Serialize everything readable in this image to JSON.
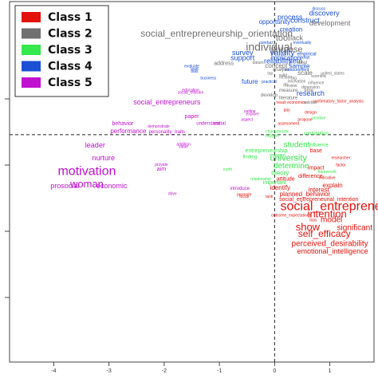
{
  "chart_data": {
    "type": "scatter",
    "xlim": [
      -4.8,
      1.8
    ],
    "ylim": [
      -4.1,
      2.4
    ],
    "x_ticks": [
      "-4",
      "-3",
      "-2",
      "-1",
      "0",
      "1"
    ],
    "x_tick_values": [
      -4,
      -3,
      -2,
      -1,
      0,
      1
    ],
    "reference_lines": {
      "x": 0,
      "y": 0
    },
    "legend_position": "top-left",
    "classes": [
      {
        "name": "Class 1",
        "color": "#e3120b"
      },
      {
        "name": "Class 2",
        "color": "#707070"
      },
      {
        "name": "Class 3",
        "color": "#35e84b"
      },
      {
        "name": "Class 4",
        "color": "#1a4fd6"
      },
      {
        "name": "Class 5",
        "color": "#c010d0"
      }
    ],
    "points": [
      {
        "label": "discuss",
        "x": 0.8,
        "y": 2.27,
        "cls": 4,
        "size": 5
      },
      {
        "label": "discovery",
        "x": 0.9,
        "y": 2.18,
        "cls": 4,
        "size": 9
      },
      {
        "label": "process",
        "x": 0.28,
        "y": 2.11,
        "cls": 4,
        "size": 9
      },
      {
        "label": "construct",
        "x": 0.55,
        "y": 2.05,
        "cls": 4,
        "size": 9
      },
      {
        "label": "opportunity",
        "x": 0.0,
        "y": 2.03,
        "cls": 4,
        "size": 8
      },
      {
        "label": "development",
        "x": 1.0,
        "y": 2.0,
        "cls": 2,
        "size": 9
      },
      {
        "label": "creation",
        "x": 0.3,
        "y": 1.89,
        "cls": 4,
        "size": 8
      },
      {
        "label": "social_entrepreneurship_orientation",
        "x": -1.05,
        "y": 1.81,
        "cls": 2,
        "size": 12
      },
      {
        "label": "tool",
        "x": 0.15,
        "y": 1.74,
        "cls": 2,
        "size": 11
      },
      {
        "label": "lack",
        "x": 0.4,
        "y": 1.74,
        "cls": 2,
        "size": 9
      },
      {
        "label": "conduct",
        "x": -0.15,
        "y": 1.66,
        "cls": 4,
        "size": 5
      },
      {
        "label": "eventually",
        "x": 0.5,
        "y": 1.66,
        "cls": 4,
        "size": 5
      },
      {
        "label": "individual",
        "x": -0.1,
        "y": 1.57,
        "cls": 2,
        "size": 14
      },
      {
        "label": "purpose",
        "x": 0.22,
        "y": 1.53,
        "cls": 2,
        "size": 11
      },
      {
        "label": "survey",
        "x": -0.58,
        "y": 1.47,
        "cls": 4,
        "size": 9
      },
      {
        "label": "validity",
        "x": 0.14,
        "y": 1.47,
        "cls": 4,
        "size": 10
      },
      {
        "label": "empirical",
        "x": 0.58,
        "y": 1.45,
        "cls": 4,
        "size": 6
      },
      {
        "label": "support",
        "x": -0.58,
        "y": 1.38,
        "cls": 4,
        "size": 9
      },
      {
        "label": "implication",
        "x": 0.2,
        "y": 1.38,
        "cls": 4,
        "size": 8
      },
      {
        "label": "adopt",
        "x": 0.55,
        "y": 1.39,
        "cls": 4,
        "size": 5
      },
      {
        "label": "reliability",
        "x": 0.06,
        "y": 1.32,
        "cls": 4,
        "size": 9
      },
      {
        "label": "item",
        "x": 0.38,
        "y": 1.32,
        "cls": 4,
        "size": 9
      },
      {
        "label": "datum",
        "x": -0.3,
        "y": 1.3,
        "cls": 2,
        "size": 5
      },
      {
        "label": "address",
        "x": -0.92,
        "y": 1.28,
        "cls": 2,
        "size": 7
      },
      {
        "label": "adopt",
        "x": 0.5,
        "y": 1.3,
        "cls": 2,
        "size": 5
      },
      {
        "label": "concept",
        "x": 0.03,
        "y": 1.24,
        "cls": 2,
        "size": 8
      },
      {
        "label": "sample",
        "x": 0.45,
        "y": 1.23,
        "cls": 4,
        "size": 8
      },
      {
        "label": "evaluate",
        "x": -1.5,
        "y": 1.23,
        "cls": 4,
        "size": 5
      },
      {
        "label": "lead",
        "x": -1.45,
        "y": 1.18,
        "cls": 4,
        "size": 5
      },
      {
        "label": "bias",
        "x": -1.45,
        "y": 1.14,
        "cls": 4,
        "size": 5
      },
      {
        "label": "analysis",
        "x": 0.12,
        "y": 1.17,
        "cls": 2,
        "size": 6
      },
      {
        "label": "measurement",
        "x": 0.4,
        "y": 1.17,
        "cls": 4,
        "size": 5
      },
      {
        "label": "scale",
        "x": 0.55,
        "y": 1.11,
        "cls": 2,
        "size": 8
      },
      {
        "label": "tap",
        "x": -0.08,
        "y": 1.1,
        "cls": 2,
        "size": 5
      },
      {
        "label": "united_states",
        "x": 1.05,
        "y": 1.1,
        "cls": 2,
        "size": 5
      },
      {
        "label": "valid",
        "x": 0.15,
        "y": 1.07,
        "cls": 2,
        "size": 5
      },
      {
        "label": "scientific",
        "x": 0.8,
        "y": 1.05,
        "cls": 2,
        "size": 5
      },
      {
        "label": "include",
        "x": 0.2,
        "y": 1.03,
        "cls": 2,
        "size": 5
      },
      {
        "label": "big",
        "x": 0.35,
        "y": 1.02,
        "cls": 2,
        "size": 5
      },
      {
        "label": "business",
        "x": -1.2,
        "y": 1.02,
        "cls": 4,
        "size": 5
      },
      {
        "label": "future",
        "x": -0.45,
        "y": 0.95,
        "cls": 4,
        "size": 8
      },
      {
        "label": "practical",
        "x": -0.1,
        "y": 0.95,
        "cls": 4,
        "size": 5
      },
      {
        "label": "innovation",
        "x": 0.4,
        "y": 0.96,
        "cls": 2,
        "size": 5
      },
      {
        "label": "influence",
        "x": 0.75,
        "y": 0.93,
        "cls": 2,
        "size": 5
      },
      {
        "label": "ph",
        "x": 0.2,
        "y": 0.9,
        "cls": 2,
        "size": 5
      },
      {
        "label": "review",
        "x": 0.3,
        "y": 0.88,
        "cls": 2,
        "size": 5
      },
      {
        "label": "dimension",
        "x": 0.65,
        "y": 0.85,
        "cls": 2,
        "size": 5
      },
      {
        "label": "measure",
        "x": 0.25,
        "y": 0.8,
        "cls": 2,
        "size": 6
      },
      {
        "label": "time",
        "x": 0.62,
        "y": 0.8,
        "cls": 2,
        "size": 6
      },
      {
        "label": "research",
        "x": 0.65,
        "y": 0.74,
        "cls": 4,
        "size": 9
      },
      {
        "label": "education",
        "x": -1.52,
        "y": 0.8,
        "cls": 5,
        "size": 5
      },
      {
        "label": "social_mission",
        "x": -1.52,
        "y": 0.76,
        "cls": 5,
        "size": 5
      },
      {
        "label": "develop",
        "x": -0.1,
        "y": 0.71,
        "cls": 2,
        "size": 6
      },
      {
        "label": "literature",
        "x": 0.25,
        "y": 0.66,
        "cls": 2,
        "size": 6
      },
      {
        "label": "result",
        "x": 0.12,
        "y": 0.58,
        "cls": 1,
        "size": 5
      },
      {
        "label": "economics",
        "x": 0.4,
        "y": 0.58,
        "cls": 1,
        "size": 5
      },
      {
        "label": "validate",
        "x": 0.65,
        "y": 0.58,
        "cls": 2,
        "size": 5
      },
      {
        "label": "social_entrepreneurs",
        "x": -1.95,
        "y": 0.58,
        "cls": 5,
        "size": 9
      },
      {
        "label": "confirmatory_factor_analysis",
        "x": 1.15,
        "y": 0.6,
        "cls": 1,
        "size": 5
      },
      {
        "label": "demonstrate",
        "x": -2.1,
        "y": 0.15,
        "cls": 5,
        "size": 5
      },
      {
        "label": "pay",
        "x": 0.22,
        "y": 0.44,
        "cls": 1,
        "size": 5
      },
      {
        "label": "design",
        "x": 0.65,
        "y": 0.4,
        "cls": 1,
        "size": 5
      },
      {
        "label": "outline",
        "x": -0.45,
        "y": 0.42,
        "cls": 5,
        "size": 5
      },
      {
        "label": "explore",
        "x": -0.4,
        "y": 0.37,
        "cls": 5,
        "size": 5
      },
      {
        "label": "paper",
        "x": -1.5,
        "y": 0.33,
        "cls": 5,
        "size": 7
      },
      {
        "label": "positive",
        "x": 0.8,
        "y": 0.3,
        "cls": 3,
        "size": 5
      },
      {
        "label": "propose",
        "x": 0.55,
        "y": 0.27,
        "cls": 1,
        "size": 5
      },
      {
        "label": "aspect",
        "x": -0.5,
        "y": 0.27,
        "cls": 5,
        "size": 5
      },
      {
        "label": "behavior",
        "x": -2.75,
        "y": 0.2,
        "cls": 5,
        "size": 7
      },
      {
        "label": "understand",
        "x": -1.2,
        "y": 0.2,
        "cls": 5,
        "size": 6
      },
      {
        "label": "social",
        "x": -1.0,
        "y": 0.2,
        "cls": 5,
        "size": 6
      },
      {
        "label": "assessment",
        "x": 0.25,
        "y": 0.2,
        "cls": 1,
        "size": 5
      },
      {
        "label": "characteristic",
        "x": 0.05,
        "y": 0.05,
        "cls": 3,
        "size": 5
      },
      {
        "label": "performance",
        "x": -2.65,
        "y": 0.06,
        "cls": 5,
        "size": 8
      },
      {
        "label": "personality_traits",
        "x": -1.95,
        "y": 0.05,
        "cls": 5,
        "size": 6
      },
      {
        "label": "contribution",
        "x": 0.75,
        "y": 0.02,
        "cls": 3,
        "size": 6
      },
      {
        "label": "suggest",
        "x": -0.05,
        "y": -0.02,
        "cls": 3,
        "size": 5
      },
      {
        "label": "addition",
        "x": -1.65,
        "y": -0.18,
        "cls": 5,
        "size": 5
      },
      {
        "label": "value",
        "x": -1.65,
        "y": -0.22,
        "cls": 5,
        "size": 5
      },
      {
        "label": "leader",
        "x": -3.25,
        "y": -0.2,
        "cls": 5,
        "size": 9
      },
      {
        "label": "student",
        "x": 0.4,
        "y": -0.19,
        "cls": 3,
        "size": 10
      },
      {
        "label": "influence",
        "x": 0.8,
        "y": -0.19,
        "cls": 3,
        "size": 6
      },
      {
        "label": "entrepreneurship",
        "x": -0.15,
        "y": -0.29,
        "cls": 3,
        "size": 7
      },
      {
        "label": "base",
        "x": 0.75,
        "y": -0.29,
        "cls": 1,
        "size": 7
      },
      {
        "label": "finding",
        "x": -0.45,
        "y": -0.4,
        "cls": 3,
        "size": 6
      },
      {
        "label": "university",
        "x": 0.25,
        "y": -0.43,
        "cls": 3,
        "size": 11
      },
      {
        "label": "researcher",
        "x": 1.2,
        "y": -0.42,
        "cls": 1,
        "size": 5
      },
      {
        "label": "nurture",
        "x": -3.1,
        "y": -0.43,
        "cls": 5,
        "size": 9
      },
      {
        "label": "measure",
        "x": 0.05,
        "y": -0.37,
        "cls": 3,
        "size": 5
      },
      {
        "label": "determine",
        "x": 0.3,
        "y": -0.57,
        "cls": 3,
        "size": 10
      },
      {
        "label": "impact",
        "x": 0.75,
        "y": -0.6,
        "cls": 1,
        "size": 7
      },
      {
        "label": "provide",
        "x": -2.05,
        "y": -0.54,
        "cls": 5,
        "size": 5
      },
      {
        "label": "aim",
        "x": -2.05,
        "y": -0.62,
        "cls": 5,
        "size": 7
      },
      {
        "label": "factor",
        "x": 1.2,
        "y": -0.55,
        "cls": 1,
        "size": 5
      },
      {
        "label": "motivation",
        "x": -3.4,
        "y": -0.67,
        "cls": 5,
        "size": 16
      },
      {
        "label": "north",
        "x": -0.85,
        "y": -0.63,
        "cls": 3,
        "size": 5
      },
      {
        "label": "theory",
        "x": 0.1,
        "y": -0.7,
        "cls": 3,
        "size": 8
      },
      {
        "label": "framework",
        "x": 0.95,
        "y": -0.67,
        "cls": 3,
        "size": 5
      },
      {
        "label": "difference",
        "x": 0.65,
        "y": -0.75,
        "cls": 1,
        "size": 7
      },
      {
        "label": "relationship",
        "x": -0.25,
        "y": -0.8,
        "cls": 3,
        "size": 5
      },
      {
        "label": "attitude",
        "x": 0.2,
        "y": -0.8,
        "cls": 1,
        "size": 7
      },
      {
        "label": "indicative",
        "x": 0.95,
        "y": -0.78,
        "cls": 1,
        "size": 5
      },
      {
        "label": "important",
        "x": 0.0,
        "y": -0.87,
        "cls": 3,
        "size": 7
      },
      {
        "label": "woman",
        "x": -3.4,
        "y": -0.9,
        "cls": 5,
        "size": 13
      },
      {
        "label": "explain",
        "x": 1.05,
        "y": -0.92,
        "cls": 1,
        "size": 8
      },
      {
        "label": "identify",
        "x": 0.1,
        "y": -0.96,
        "cls": 1,
        "size": 8
      },
      {
        "label": "introduce",
        "x": -0.63,
        "y": -0.97,
        "cls": 5,
        "size": 6
      },
      {
        "label": "prosocial",
        "x": -3.8,
        "y": -0.93,
        "cls": 5,
        "size": 9
      },
      {
        "label": "economic",
        "x": -2.95,
        "y": -0.93,
        "cls": 5,
        "size": 9
      },
      {
        "label": "interest",
        "x": 0.8,
        "y": -1.0,
        "cls": 1,
        "size": 8
      },
      {
        "label": "planned_behavior",
        "x": 0.55,
        "y": -1.08,
        "cls": 1,
        "size": 8
      },
      {
        "label": "drive",
        "x": -1.85,
        "y": -1.07,
        "cls": 5,
        "size": 5
      },
      {
        "label": "promote",
        "x": -0.55,
        "y": -1.08,
        "cls": 1,
        "size": 5
      },
      {
        "label": "focus",
        "x": -0.55,
        "y": -1.12,
        "cls": 1,
        "size": 5
      },
      {
        "label": "rank",
        "x": -0.1,
        "y": -1.12,
        "cls": 1,
        "size": 5
      },
      {
        "label": "social_entrepreneurial_intention",
        "x": 0.8,
        "y": -1.17,
        "cls": 1,
        "size": 7
      },
      {
        "label": "social_entrepreneuri",
        "x": 1.15,
        "y": -1.3,
        "cls": 1,
        "size": 16
      },
      {
        "label": "intention",
        "x": 0.95,
        "y": -1.44,
        "cls": 1,
        "size": 13
      },
      {
        "label": "outcome_expectations",
        "x": 0.3,
        "y": -1.46,
        "cls": 1,
        "size": 5
      },
      {
        "label": "bias",
        "x": 0.7,
        "y": -1.54,
        "cls": 1,
        "size": 5
      },
      {
        "label": "model",
        "x": 1.03,
        "y": -1.54,
        "cls": 1,
        "size": 10
      },
      {
        "label": "show",
        "x": 0.6,
        "y": -1.68,
        "cls": 1,
        "size": 13
      },
      {
        "label": "significant",
        "x": 1.45,
        "y": -1.68,
        "cls": 1,
        "size": 10
      },
      {
        "label": "self_efficacy",
        "x": 0.9,
        "y": -1.8,
        "cls": 1,
        "size": 12
      },
      {
        "label": "perceived_desirability",
        "x": 1.0,
        "y": -1.97,
        "cls": 1,
        "size": 10
      },
      {
        "label": "emotional_intelligence",
        "x": 1.05,
        "y": -2.11,
        "cls": 1,
        "size": 9
      }
    ]
  }
}
